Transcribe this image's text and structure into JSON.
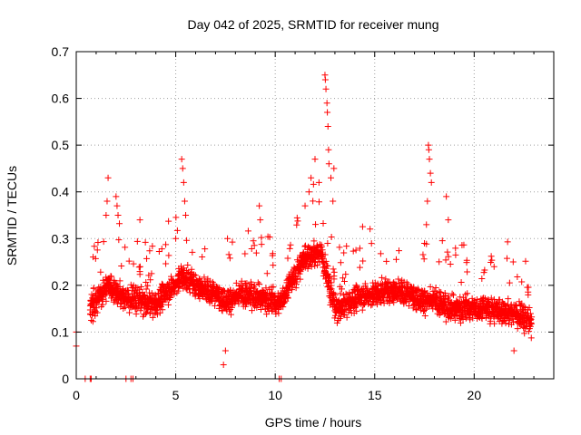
{
  "chart_data": {
    "type": "scatter",
    "title": "Day 042 of 2025, SRMTID for receiver mung",
    "xlabel": "GPS time / hours",
    "ylabel": "SRMTID / TECUs",
    "xlim": [
      0,
      24
    ],
    "ylim": [
      0,
      0.7
    ],
    "x_ticks": [
      {
        "value": 0,
        "label": "0"
      },
      {
        "value": 5,
        "label": "5"
      },
      {
        "value": 10,
        "label": "10"
      },
      {
        "value": 15,
        "label": "15"
      },
      {
        "value": 20,
        "label": "20"
      }
    ],
    "y_ticks": [
      {
        "value": 0,
        "label": "0"
      },
      {
        "value": 0.1,
        "label": "0.1"
      },
      {
        "value": 0.2,
        "label": "0.2"
      },
      {
        "value": 0.3,
        "label": "0.3"
      },
      {
        "value": 0.4,
        "label": "0.4"
      },
      {
        "value": 0.5,
        "label": "0.5"
      },
      {
        "value": 0.6,
        "label": "0.6"
      },
      {
        "value": 0.7,
        "label": "0.7"
      }
    ],
    "grid": true,
    "marker": "+",
    "series": [
      {
        "name": "SRMTID",
        "color": "#ff0000",
        "x_start": 0.7,
        "x_end": 22.9,
        "baseline": [
          [
            0.7,
            0.15
          ],
          [
            1.6,
            0.2
          ],
          [
            2.5,
            0.17
          ],
          [
            3.0,
            0.17
          ],
          [
            4.0,
            0.16
          ],
          [
            5.3,
            0.22
          ],
          [
            6.5,
            0.19
          ],
          [
            7.5,
            0.17
          ],
          [
            8.8,
            0.18
          ],
          [
            10.2,
            0.16
          ],
          [
            11.5,
            0.26
          ],
          [
            12.3,
            0.27
          ],
          [
            13.0,
            0.15
          ],
          [
            14.5,
            0.18
          ],
          [
            16.0,
            0.19
          ],
          [
            17.5,
            0.17
          ],
          [
            19.0,
            0.15
          ],
          [
            20.5,
            0.15
          ],
          [
            22.0,
            0.14
          ],
          [
            22.9,
            0.12
          ]
        ],
        "spread": 0.05,
        "extra_points": [
          {
            "x": 0.0,
            "y": 0.07
          },
          {
            "x": 0.0,
            "y": 0.1
          },
          {
            "x": 1.5,
            "y": 0.35
          },
          {
            "x": 1.55,
            "y": 0.38
          },
          {
            "x": 1.6,
            "y": 0.43
          },
          {
            "x": 2.0,
            "y": 0.39
          },
          {
            "x": 2.05,
            "y": 0.37
          },
          {
            "x": 2.1,
            "y": 0.35
          },
          {
            "x": 3.2,
            "y": 0.34
          },
          {
            "x": 5.0,
            "y": 0.3
          },
          {
            "x": 5.3,
            "y": 0.47
          },
          {
            "x": 5.35,
            "y": 0.45
          },
          {
            "x": 5.4,
            "y": 0.42
          },
          {
            "x": 5.45,
            "y": 0.38
          },
          {
            "x": 5.5,
            "y": 0.35
          },
          {
            "x": 7.4,
            "y": 0.03
          },
          {
            "x": 7.5,
            "y": 0.06
          },
          {
            "x": 7.6,
            "y": 0.3
          },
          {
            "x": 9.2,
            "y": 0.37
          },
          {
            "x": 9.25,
            "y": 0.34
          },
          {
            "x": 11.5,
            "y": 0.37
          },
          {
            "x": 11.7,
            "y": 0.4
          },
          {
            "x": 11.8,
            "y": 0.43
          },
          {
            "x": 12.0,
            "y": 0.47
          },
          {
            "x": 12.2,
            "y": 0.42
          },
          {
            "x": 12.5,
            "y": 0.65
          },
          {
            "x": 12.52,
            "y": 0.64
          },
          {
            "x": 12.55,
            "y": 0.62
          },
          {
            "x": 12.6,
            "y": 0.59
          },
          {
            "x": 12.62,
            "y": 0.57
          },
          {
            "x": 12.65,
            "y": 0.54
          },
          {
            "x": 12.68,
            "y": 0.49
          },
          {
            "x": 12.7,
            "y": 0.46
          },
          {
            "x": 12.8,
            "y": 0.43
          },
          {
            "x": 12.9,
            "y": 0.38
          },
          {
            "x": 12.95,
            "y": 0.45
          },
          {
            "x": 17.5,
            "y": 0.29
          },
          {
            "x": 17.6,
            "y": 0.33
          },
          {
            "x": 17.65,
            "y": 0.38
          },
          {
            "x": 17.7,
            "y": 0.5
          },
          {
            "x": 17.72,
            "y": 0.49
          },
          {
            "x": 17.75,
            "y": 0.47
          },
          {
            "x": 17.8,
            "y": 0.44
          },
          {
            "x": 17.85,
            "y": 0.42
          },
          {
            "x": 18.6,
            "y": 0.39
          },
          {
            "x": 18.7,
            "y": 0.34
          },
          {
            "x": 21.0,
            "y": 0.24
          },
          {
            "x": 22.0,
            "y": 0.06
          }
        ],
        "zero_points": [
          0.45,
          0.7,
          0.75,
          2.5,
          2.75,
          2.85,
          10.2,
          10.3
        ]
      }
    ]
  }
}
